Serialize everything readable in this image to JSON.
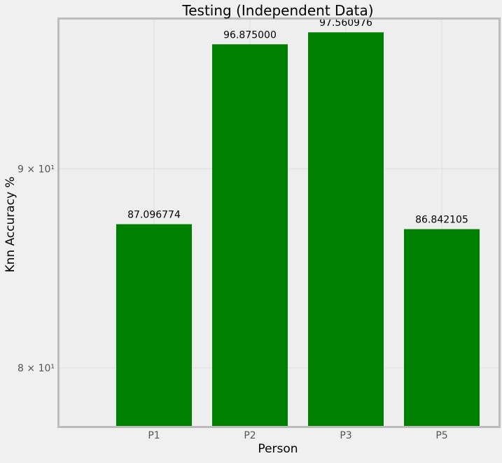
{
  "chart_data": {
    "type": "bar",
    "title": "Testing (Independent Data)",
    "xlabel": "Person",
    "ylabel": "Knn Accuracy %",
    "categories": [
      "P1",
      "P2",
      "P3",
      "P5"
    ],
    "values": [
      87.096774,
      96.875,
      97.560976,
      86.842105
    ],
    "value_labels": [
      "87.096774",
      "96.875000",
      "97.560976",
      "86.842105"
    ],
    "ylim": [
      77.3,
      98.3
    ],
    "yscale": "log",
    "yticks": [
      {
        "value": 80,
        "label": "8 × 10¹"
      },
      {
        "value": 90,
        "label": "9 × 10¹"
      }
    ],
    "grid": true,
    "colors": {
      "bar": "#008000",
      "background": "#eeeeee",
      "figure": "#f0f0f0",
      "frame": "#bcbcbc",
      "grid": "#dddddd",
      "tick_text": "#555555",
      "text": "#000000"
    }
  }
}
